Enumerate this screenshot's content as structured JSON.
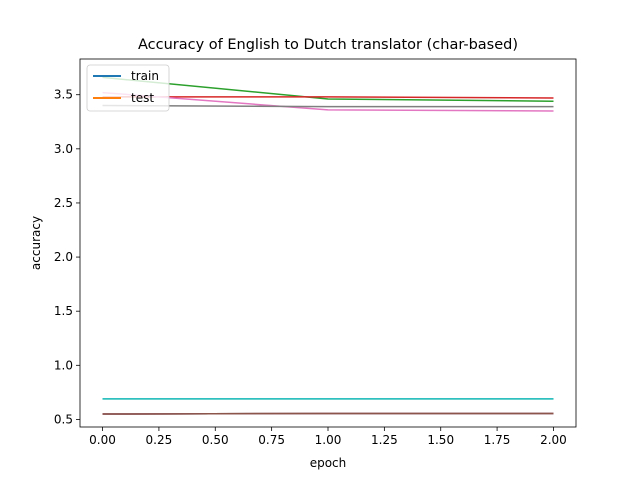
{
  "chart_data": {
    "type": "line",
    "title": "Accuracy of English to Dutch translator (char-based)",
    "xlabel": "epoch",
    "ylabel": "accuracy",
    "xlim": [
      -0.1,
      2.1
    ],
    "ylim": [
      0.43,
      3.83
    ],
    "x": [
      0,
      1,
      2
    ],
    "xticks": [
      0.0,
      0.25,
      0.5,
      0.75,
      1.0,
      1.25,
      1.5,
      1.75,
      2.0
    ],
    "xtick_labels": [
      "0.00",
      "0.25",
      "0.50",
      "0.75",
      "1.00",
      "1.25",
      "1.50",
      "1.75",
      "2.00"
    ],
    "yticks": [
      0.5,
      1.0,
      1.5,
      2.0,
      2.5,
      3.0,
      3.5
    ],
    "ytick_labels": [
      "0.5",
      "1.0",
      "1.5",
      "2.0",
      "2.5",
      "3.0",
      "3.5"
    ],
    "grid": false,
    "legend_position": "upper-left",
    "legend": [
      {
        "label": "train",
        "color": "#1f77b4"
      },
      {
        "label": "test",
        "color": "#ff7f0e"
      }
    ],
    "series": [
      {
        "color": "#1f77b4",
        "values": [
          0.55,
          0.555,
          0.555
        ]
      },
      {
        "color": "#ff7f0e",
        "values": [
          0.55,
          0.555,
          0.555
        ]
      },
      {
        "color": "#2ca02c",
        "values": [
          3.66,
          3.46,
          3.44
        ]
      },
      {
        "color": "#d62728",
        "values": [
          3.48,
          3.48,
          3.47
        ]
      },
      {
        "color": "#9467bd",
        "values": [
          0.55,
          0.555,
          0.555
        ]
      },
      {
        "color": "#8c564b",
        "values": [
          0.55,
          0.555,
          0.555
        ]
      },
      {
        "color": "#e377c2",
        "values": [
          3.52,
          3.36,
          3.35
        ]
      },
      {
        "color": "#7f7f7f",
        "values": [
          3.4,
          3.39,
          3.39
        ]
      },
      {
        "color": "#bcbd22",
        "values": [
          0.69,
          0.69,
          0.69
        ]
      },
      {
        "color": "#17becf",
        "values": [
          0.69,
          0.69,
          0.69
        ]
      }
    ]
  }
}
